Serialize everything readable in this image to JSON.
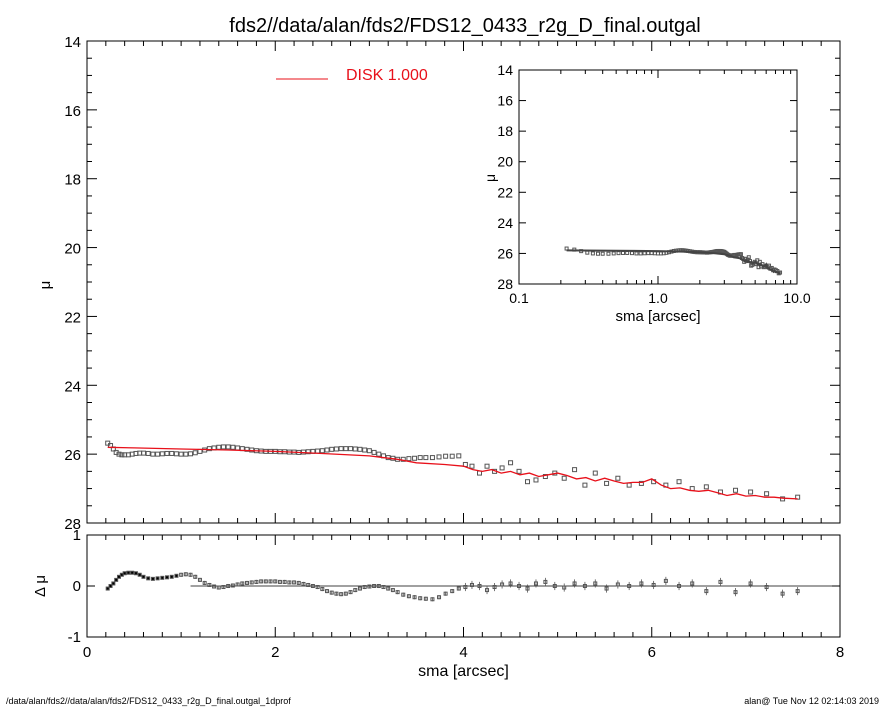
{
  "title": "fds2//data/alan/fds2/FDS12_0433_r2g_D_final.outgal",
  "footer": {
    "left": "/data/alan/fds2//data/alan/fds2/FDS12_0433_r2g_D_final.outgal_1dprof",
    "right": "alan@  Tue Nov 12 02:14:03 2019"
  },
  "colors": {
    "model": "#e8101a",
    "points": "#555555",
    "axis": "#000000"
  },
  "chart_data": [
    {
      "id": "main",
      "type": "scatter",
      "ylabel": "μ",
      "xlim": [
        0,
        8
      ],
      "ylim": [
        28,
        14
      ],
      "yticks": [
        "14",
        "16",
        "18",
        "20",
        "22",
        "24",
        "26",
        "28"
      ],
      "legend": {
        "label": "DISK  1.000",
        "placement": "top-center"
      },
      "series": [
        {
          "name": "data",
          "x": [
            0.22,
            0.25,
            0.28,
            0.31,
            0.34,
            0.37,
            0.4,
            0.44,
            0.48,
            0.52,
            0.56,
            0.6,
            0.65,
            0.7,
            0.75,
            0.8,
            0.85,
            0.9,
            0.95,
            1.0,
            1.05,
            1.1,
            1.15,
            1.2,
            1.25,
            1.3,
            1.35,
            1.4,
            1.45,
            1.5,
            1.55,
            1.6,
            1.65,
            1.7,
            1.75,
            1.8,
            1.85,
            1.9,
            1.95,
            2.0,
            2.05,
            2.1,
            2.15,
            2.2,
            2.25,
            2.3,
            2.35,
            2.4,
            2.45,
            2.5,
            2.55,
            2.6,
            2.65,
            2.7,
            2.75,
            2.8,
            2.85,
            2.9,
            2.95,
            3.0,
            3.05,
            3.1,
            3.15,
            3.2,
            3.25,
            3.3,
            3.36,
            3.42,
            3.48,
            3.54,
            3.6,
            3.67,
            3.74,
            3.81,
            3.88,
            3.95,
            4.02,
            4.09,
            4.17,
            4.25,
            4.33,
            4.41,
            4.5,
            4.59,
            4.68,
            4.77,
            4.87,
            4.97,
            5.07,
            5.18,
            5.29,
            5.4,
            5.52,
            5.64,
            5.76,
            5.89,
            6.02,
            6.15,
            6.29,
            6.43,
            6.58,
            6.73,
            6.89,
            7.05,
            7.22,
            7.39,
            7.55
          ],
          "y": [
            25.68,
            25.75,
            25.85,
            25.95,
            26.0,
            26.02,
            26.02,
            26.02,
            26.0,
            25.98,
            25.97,
            25.97,
            25.98,
            26.0,
            26.0,
            25.99,
            25.98,
            25.98,
            25.99,
            26.0,
            26.0,
            25.99,
            25.96,
            25.92,
            25.88,
            25.84,
            25.82,
            25.8,
            25.79,
            25.79,
            25.8,
            25.82,
            25.84,
            25.86,
            25.88,
            25.9,
            25.91,
            25.92,
            25.92,
            25.92,
            25.93,
            25.93,
            25.94,
            25.94,
            25.95,
            25.94,
            25.93,
            25.92,
            25.91,
            25.9,
            25.88,
            25.86,
            25.85,
            25.84,
            25.84,
            25.84,
            25.85,
            25.86,
            25.88,
            25.9,
            25.95,
            26.0,
            26.05,
            26.1,
            26.12,
            26.15,
            26.15,
            26.13,
            26.12,
            26.1,
            26.1,
            26.1,
            26.08,
            26.06,
            26.06,
            26.05,
            26.3,
            26.35,
            26.55,
            26.35,
            26.5,
            26.4,
            26.25,
            26.5,
            26.8,
            26.75,
            26.65,
            26.55,
            26.7,
            26.45,
            26.9,
            26.55,
            26.85,
            26.7,
            26.9,
            26.85,
            26.8,
            26.9,
            26.8,
            27.0,
            26.95,
            27.1,
            27.05,
            27.1,
            27.15,
            27.3,
            27.25
          ]
        },
        {
          "name": "DISK  1.000",
          "x": [
            0.22,
            0.5,
            1.0,
            1.5,
            2.0,
            2.5,
            3.0,
            3.3,
            3.5,
            3.8,
            4.0,
            4.1,
            4.2,
            4.3,
            4.4,
            4.5,
            4.6,
            4.7,
            4.8,
            4.9,
            5.0,
            5.1,
            5.2,
            5.3,
            5.4,
            5.5,
            5.6,
            5.7,
            5.8,
            5.9,
            6.0,
            6.1,
            6.2,
            6.3,
            6.4,
            6.5,
            6.6,
            6.7,
            6.8,
            6.9,
            7.0,
            7.1,
            7.2,
            7.3,
            7.4,
            7.55
          ],
          "y": [
            25.8,
            25.82,
            25.85,
            25.88,
            25.92,
            25.98,
            26.05,
            26.15,
            26.25,
            26.3,
            26.35,
            26.45,
            26.5,
            26.45,
            26.55,
            26.5,
            26.6,
            26.55,
            26.65,
            26.6,
            26.55,
            26.62,
            26.72,
            26.68,
            26.78,
            26.7,
            26.78,
            26.85,
            26.82,
            26.82,
            26.72,
            26.9,
            27.0,
            26.98,
            27.05,
            27.08,
            27.05,
            27.12,
            27.2,
            27.15,
            27.22,
            27.2,
            27.25,
            27.25,
            27.28,
            27.3
          ]
        }
      ]
    },
    {
      "id": "inset",
      "type": "scatter",
      "xlabel": "sma [arcsec]",
      "ylabel": "μ",
      "xscale": "log",
      "xlim": [
        0.1,
        10
      ],
      "ylim": [
        28,
        14
      ],
      "xticks": [
        "0.1",
        "1.0",
        "10.0"
      ],
      "yticks": [
        "14",
        "16",
        "18",
        "20",
        "22",
        "24",
        "26",
        "28"
      ]
    },
    {
      "id": "residual",
      "type": "scatter",
      "xlabel": "sma [arcsec]",
      "ylabel": "Δ μ",
      "xlim": [
        0,
        8
      ],
      "ylim": [
        -1,
        1
      ],
      "xticks": [
        "0",
        "2",
        "4",
        "6",
        "8"
      ],
      "yticks": [
        "1",
        "0",
        "-1"
      ],
      "series": [
        {
          "name": "residual",
          "x": [
            0.22,
            0.25,
            0.28,
            0.31,
            0.34,
            0.37,
            0.4,
            0.44,
            0.48,
            0.52,
            0.56,
            0.6,
            0.65,
            0.7,
            0.75,
            0.8,
            0.85,
            0.9,
            0.95,
            1.0,
            1.05,
            1.1,
            1.15,
            1.2,
            1.25,
            1.3,
            1.35,
            1.4,
            1.45,
            1.5,
            1.55,
            1.6,
            1.65,
            1.7,
            1.75,
            1.8,
            1.85,
            1.9,
            1.95,
            2.0,
            2.05,
            2.1,
            2.15,
            2.2,
            2.25,
            2.3,
            2.35,
            2.4,
            2.45,
            2.5,
            2.55,
            2.6,
            2.65,
            2.7,
            2.75,
            2.8,
            2.85,
            2.9,
            2.95,
            3.0,
            3.05,
            3.1,
            3.15,
            3.2,
            3.25,
            3.3,
            3.36,
            3.42,
            3.48,
            3.54,
            3.6,
            3.67,
            3.74,
            3.81,
            3.88,
            3.95,
            4.02,
            4.09,
            4.17,
            4.25,
            4.33,
            4.41,
            4.5,
            4.59,
            4.68,
            4.77,
            4.87,
            4.97,
            5.07,
            5.18,
            5.29,
            5.4,
            5.52,
            5.64,
            5.76,
            5.89,
            6.02,
            6.15,
            6.29,
            6.43,
            6.58,
            6.73,
            6.89,
            7.05,
            7.22,
            7.39,
            7.55
          ],
          "y": [
            -0.05,
            0.0,
            0.05,
            0.12,
            0.18,
            0.22,
            0.25,
            0.26,
            0.26,
            0.25,
            0.22,
            0.18,
            0.15,
            0.14,
            0.15,
            0.16,
            0.17,
            0.18,
            0.2,
            0.22,
            0.23,
            0.22,
            0.18,
            0.12,
            0.06,
            0.02,
            -0.01,
            -0.03,
            -0.02,
            0.0,
            0.01,
            0.03,
            0.05,
            0.06,
            0.07,
            0.08,
            0.09,
            0.09,
            0.09,
            0.09,
            0.08,
            0.08,
            0.07,
            0.07,
            0.06,
            0.04,
            0.02,
            0.0,
            -0.02,
            -0.06,
            -0.1,
            -0.13,
            -0.15,
            -0.16,
            -0.15,
            -0.12,
            -0.08,
            -0.05,
            -0.02,
            -0.01,
            0.0,
            0.0,
            -0.02,
            -0.05,
            -0.08,
            -0.12,
            -0.17,
            -0.2,
            -0.22,
            -0.24,
            -0.25,
            -0.26,
            -0.22,
            -0.15,
            -0.1,
            -0.05,
            -0.02,
            0.02,
            0.0,
            -0.08,
            -0.02,
            0.03,
            0.05,
            0.0,
            -0.05,
            0.05,
            0.08,
            0.0,
            -0.03,
            0.05,
            0.0,
            0.05,
            -0.05,
            0.03,
            0.0,
            0.05,
            0.02,
            0.1,
            0.0,
            0.05,
            -0.1,
            0.08,
            -0.12,
            0.05,
            -0.02,
            -0.15,
            -0.1
          ]
        }
      ]
    }
  ]
}
